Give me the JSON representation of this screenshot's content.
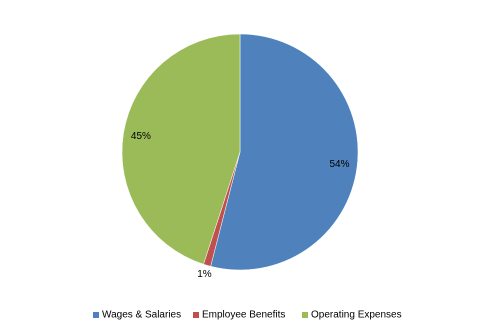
{
  "chart_data": {
    "type": "pie",
    "categories": [
      "Wages & Salaries",
      "Employee Benefits",
      "Operating Expenses"
    ],
    "values": [
      54,
      1,
      45
    ],
    "value_labels": [
      "54%",
      "1%",
      "45%"
    ],
    "colors": [
      "#4f81bd",
      "#c0504d",
      "#9bbb59"
    ],
    "legend": "bottom"
  }
}
